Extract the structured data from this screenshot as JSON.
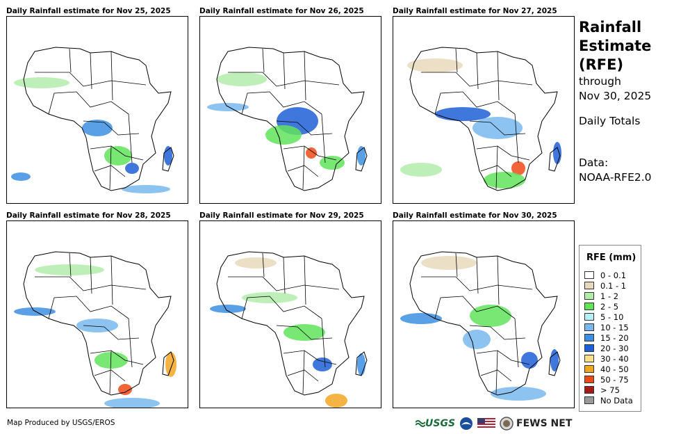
{
  "panels": [
    {
      "title": "Daily Rainfall estimate for Nov 25, 2025"
    },
    {
      "title": "Daily Rainfall estimate for Nov 26, 2025"
    },
    {
      "title": "Daily Rainfall estimate for Nov 27, 2025"
    },
    {
      "title": "Daily Rainfall estimate for Nov 28, 2025"
    },
    {
      "title": "Daily Rainfall estimate for Nov 29, 2025"
    },
    {
      "title": "Daily Rainfall estimate for Nov 30, 2025"
    }
  ],
  "info": {
    "title_line1": "Rainfall",
    "title_line2": "Estimate",
    "title_line3": "(RFE)",
    "through": "through",
    "date": "Nov 30, 2025",
    "totals": "Daily Totals",
    "data_label": "Data:",
    "data_source": "NOAA-RFE2.0"
  },
  "legend": {
    "title": "RFE (mm)",
    "items": [
      {
        "label": "0 - 0.1",
        "color": "#ffffff"
      },
      {
        "label": "0.1 - 1",
        "color": "#e8d9bc"
      },
      {
        "label": "1 - 2",
        "color": "#b4ecab"
      },
      {
        "label": "2 - 5",
        "color": "#62e35a"
      },
      {
        "label": "5 - 10",
        "color": "#b8eef6"
      },
      {
        "label": "10 - 15",
        "color": "#79b8ee"
      },
      {
        "label": "15 - 20",
        "color": "#3d8fe3"
      },
      {
        "label": "20 - 30",
        "color": "#1f5fd6"
      },
      {
        "label": "30 - 40",
        "color": "#f7e08a"
      },
      {
        "label": "40 - 50",
        "color": "#f3a622"
      },
      {
        "label": "50 - 75",
        "color": "#ee4a15"
      },
      {
        "label": "> 75",
        "color": "#a51a17"
      },
      {
        "label": "No Data",
        "color": "#9a9a9a"
      }
    ]
  },
  "footer": {
    "credit": "Map Produced by USGS/EROS",
    "usgs_logo": "USGS",
    "fews_logo": "FEWS NET"
  }
}
